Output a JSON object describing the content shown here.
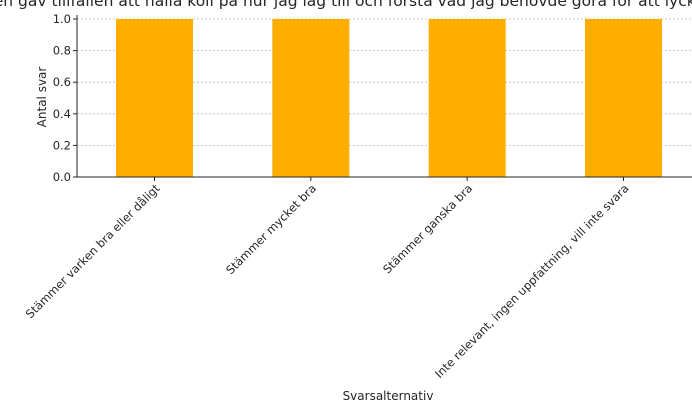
{
  "chart_data": {
    "type": "bar",
    "title": "...en gav tillfällen att hålla koll på hur jag låg till och förstå vad jag behövde göra för att lyckas",
    "xlabel": "Svarsalternativ",
    "ylabel": "Antal svar",
    "categories": [
      "Stämmer varken bra eller dåligt",
      "Stämmer mycket bra",
      "Stämmer ganska bra",
      "Inte relevant, ingen uppfattning, vill inte svara"
    ],
    "values": [
      1,
      1,
      1,
      1
    ],
    "ylim": [
      0,
      1.0
    ],
    "yticks": [
      "0.0",
      "0.2",
      "0.4",
      "0.6",
      "0.8",
      "1.0"
    ],
    "grid": true,
    "bar_color": "#FFAE00"
  }
}
